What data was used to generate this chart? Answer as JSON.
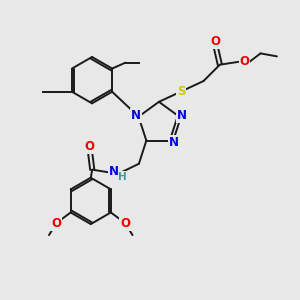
{
  "background_color": "#e8e8e8",
  "bond_color": "#1a1a1a",
  "atom_colors": {
    "N": "#0000ee",
    "O": "#ee0000",
    "S": "#cccc00",
    "C": "#1a1a1a",
    "H": "#4a9a9a"
  },
  "figsize": [
    3.0,
    3.0
  ],
  "dpi": 100
}
